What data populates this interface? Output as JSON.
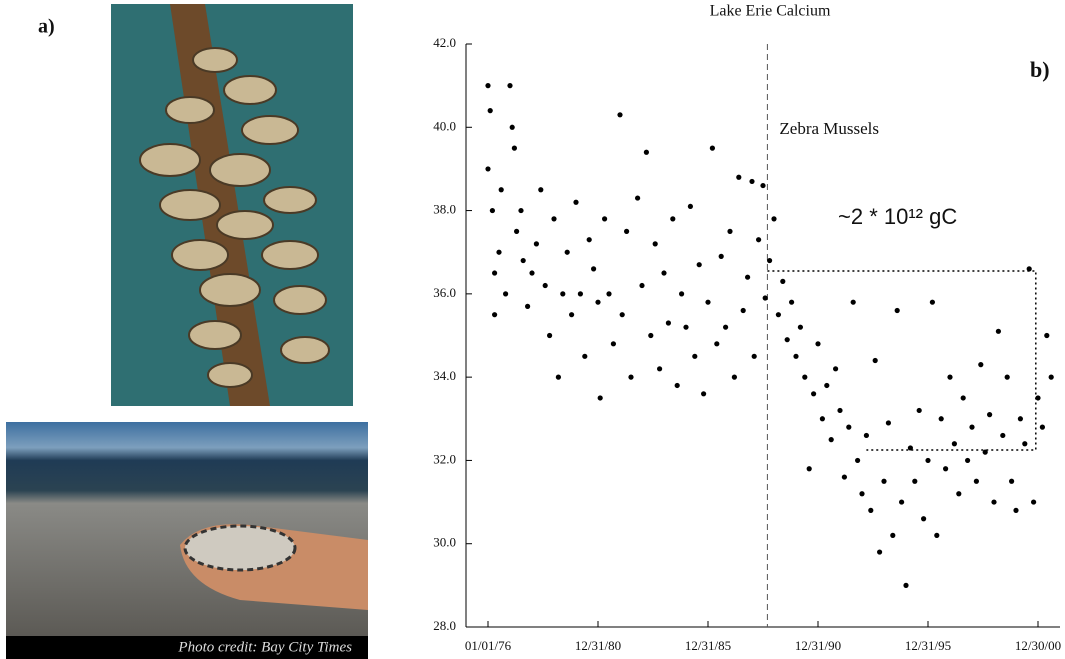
{
  "chart_data": {
    "type": "scatter",
    "title": "Lake Erie Calcium",
    "panel_a": "a)",
    "panel_b": "b)",
    "photo_credit": "Photo credit: Bay City Times",
    "event_x": 1988.7,
    "event_label": "Zebra Mussels",
    "annotation": "~2 * 10¹² gC",
    "guide": {
      "x": [
        1988.7,
        2000.9,
        2000.9,
        1993.2
      ],
      "y": [
        36.55,
        36.55,
        32.25,
        32.25
      ]
    },
    "color": "#000000",
    "xlim": [
      1975.0,
      2002.0
    ],
    "ylim": [
      28.0,
      42.0
    ],
    "xticks": [
      {
        "value": 1976,
        "label": "01/01/76"
      },
      {
        "value": 1981,
        "label": "12/31/80"
      },
      {
        "value": 1986,
        "label": "12/31/85"
      },
      {
        "value": 1991,
        "label": "12/31/90"
      },
      {
        "value": 1996,
        "label": "12/31/95"
      },
      {
        "value": 2001,
        "label": "12/30/00"
      }
    ],
    "yticks": [
      {
        "value": 28,
        "label": "28.0"
      },
      {
        "value": 30,
        "label": "30.0"
      },
      {
        "value": 32,
        "label": "32.0"
      },
      {
        "value": 34,
        "label": "34.0"
      },
      {
        "value": 36,
        "label": "36.0"
      },
      {
        "value": 38,
        "label": "38.0"
      },
      {
        "value": 40,
        "label": "40.0"
      },
      {
        "value": 42,
        "label": "42.0"
      }
    ],
    "x": [
      1976.0,
      1976.0,
      1976.1,
      1976.2,
      1976.3,
      1976.3,
      1976.5,
      1976.6,
      1976.8,
      1977.0,
      1977.1,
      1977.2,
      1977.3,
      1977.5,
      1977.6,
      1977.8,
      1978.0,
      1978.2,
      1978.4,
      1978.6,
      1978.8,
      1979.0,
      1979.2,
      1979.4,
      1979.6,
      1979.8,
      1980.0,
      1980.2,
      1980.4,
      1980.6,
      1980.8,
      1981.0,
      1981.1,
      1981.3,
      1981.5,
      1981.7,
      1982.0,
      1982.1,
      1982.3,
      1982.5,
      1982.8,
      1983.0,
      1983.2,
      1983.4,
      1983.6,
      1983.8,
      1984.0,
      1984.2,
      1984.4,
      1984.6,
      1984.8,
      1985.0,
      1985.2,
      1985.4,
      1985.6,
      1985.8,
      1986.0,
      1986.2,
      1986.4,
      1986.6,
      1986.8,
      1987.0,
      1987.2,
      1987.4,
      1987.6,
      1987.8,
      1988.0,
      1988.1,
      1988.3,
      1988.5,
      1988.6,
      1988.8,
      1989.0,
      1989.2,
      1989.4,
      1989.6,
      1989.8,
      1990.0,
      1990.2,
      1990.4,
      1990.6,
      1990.8,
      1991.0,
      1991.2,
      1991.4,
      1991.6,
      1991.8,
      1992.0,
      1992.2,
      1992.4,
      1992.6,
      1992.8,
      1993.0,
      1993.2,
      1993.4,
      1993.6,
      1993.8,
      1994.0,
      1994.2,
      1994.4,
      1994.6,
      1994.8,
      1995.0,
      1995.2,
      1995.4,
      1995.6,
      1995.8,
      1996.0,
      1996.2,
      1996.4,
      1996.6,
      1996.8,
      1997.0,
      1997.2,
      1997.4,
      1997.6,
      1997.8,
      1998.0,
      1998.2,
      1998.4,
      1998.6,
      1998.8,
      1999.0,
      1999.2,
      1999.4,
      1999.6,
      1999.8,
      2000.0,
      2000.2,
      2000.4,
      2000.6,
      2000.8,
      2001.0,
      2001.2,
      2001.4,
      2001.6
    ],
    "values": [
      41.0,
      39.0,
      40.4,
      38.0,
      36.5,
      35.5,
      37.0,
      38.5,
      36.0,
      41.0,
      40.0,
      39.5,
      37.5,
      38.0,
      36.8,
      35.7,
      36.5,
      37.2,
      38.5,
      36.2,
      35.0,
      37.8,
      34.0,
      36.0,
      37.0,
      35.5,
      38.2,
      36.0,
      34.5,
      37.3,
      36.6,
      35.8,
      33.5,
      37.8,
      36.0,
      34.8,
      40.3,
      35.5,
      37.5,
      34.0,
      38.3,
      36.2,
      39.4,
      35.0,
      37.2,
      34.2,
      36.5,
      35.3,
      37.8,
      33.8,
      36.0,
      35.2,
      38.1,
      34.5,
      36.7,
      33.6,
      35.8,
      39.5,
      34.8,
      36.9,
      35.2,
      37.5,
      34.0,
      38.8,
      35.6,
      36.4,
      38.7,
      34.5,
      37.3,
      38.6,
      35.9,
      36.8,
      37.8,
      35.5,
      36.3,
      34.9,
      35.8,
      34.5,
      35.2,
      34.0,
      31.8,
      33.6,
      34.8,
      33.0,
      33.8,
      32.5,
      34.2,
      33.2,
      31.6,
      32.8,
      35.8,
      32.0,
      31.2,
      32.6,
      30.8,
      34.4,
      29.8,
      31.5,
      32.9,
      30.2,
      35.6,
      31.0,
      29.0,
      32.3,
      31.5,
      33.2,
      30.6,
      32.0,
      35.8,
      30.2,
      33.0,
      31.8,
      34.0,
      32.4,
      31.2,
      33.5,
      32.0,
      32.8,
      31.5,
      34.3,
      32.2,
      33.1,
      31.0,
      35.1,
      32.6,
      34.0,
      31.5,
      30.8,
      33.0,
      32.4,
      36.6,
      31.0,
      33.5,
      32.8,
      35.0,
      34.0
    ]
  }
}
